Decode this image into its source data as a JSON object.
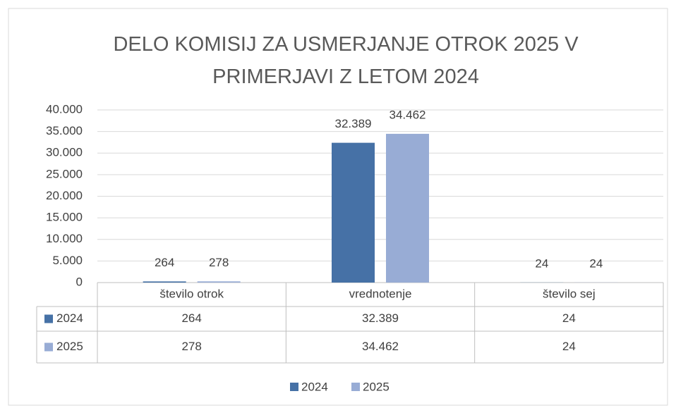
{
  "chart_data": {
    "type": "bar",
    "title": "DELO KOMISIJ ZA USMERJANJE OTROK 2025 V PRIMERJAVI Z LETOM 2024",
    "categories": [
      "število otrok",
      "vrednotenje",
      "število sej"
    ],
    "series": [
      {
        "name": "2024",
        "color": "#4671a6",
        "values": [
          264,
          32389,
          24
        ],
        "value_labels": [
          "264",
          "32.389",
          "24"
        ]
      },
      {
        "name": "2025",
        "color": "#98acd5",
        "values": [
          278,
          34462,
          24
        ],
        "value_labels": [
          "278",
          "34.462",
          "24"
        ]
      }
    ],
    "ylim": [
      0,
      40000
    ],
    "yticks": [
      0,
      {
        "value": 5000,
        "label": "5.000"
      },
      {
        "value": 10000,
        "label": "10.000"
      },
      {
        "value": 15000,
        "label": "15.000"
      },
      {
        "value": 20000,
        "label": "20.000"
      },
      {
        "value": 25000,
        "label": "25.000"
      },
      {
        "value": 30000,
        "label": "30.000"
      },
      {
        "value": 35000,
        "label": "35.000"
      },
      {
        "value": 40000,
        "label": "40.000"
      }
    ],
    "grid": true,
    "legend": "bottom",
    "data_table": true
  }
}
